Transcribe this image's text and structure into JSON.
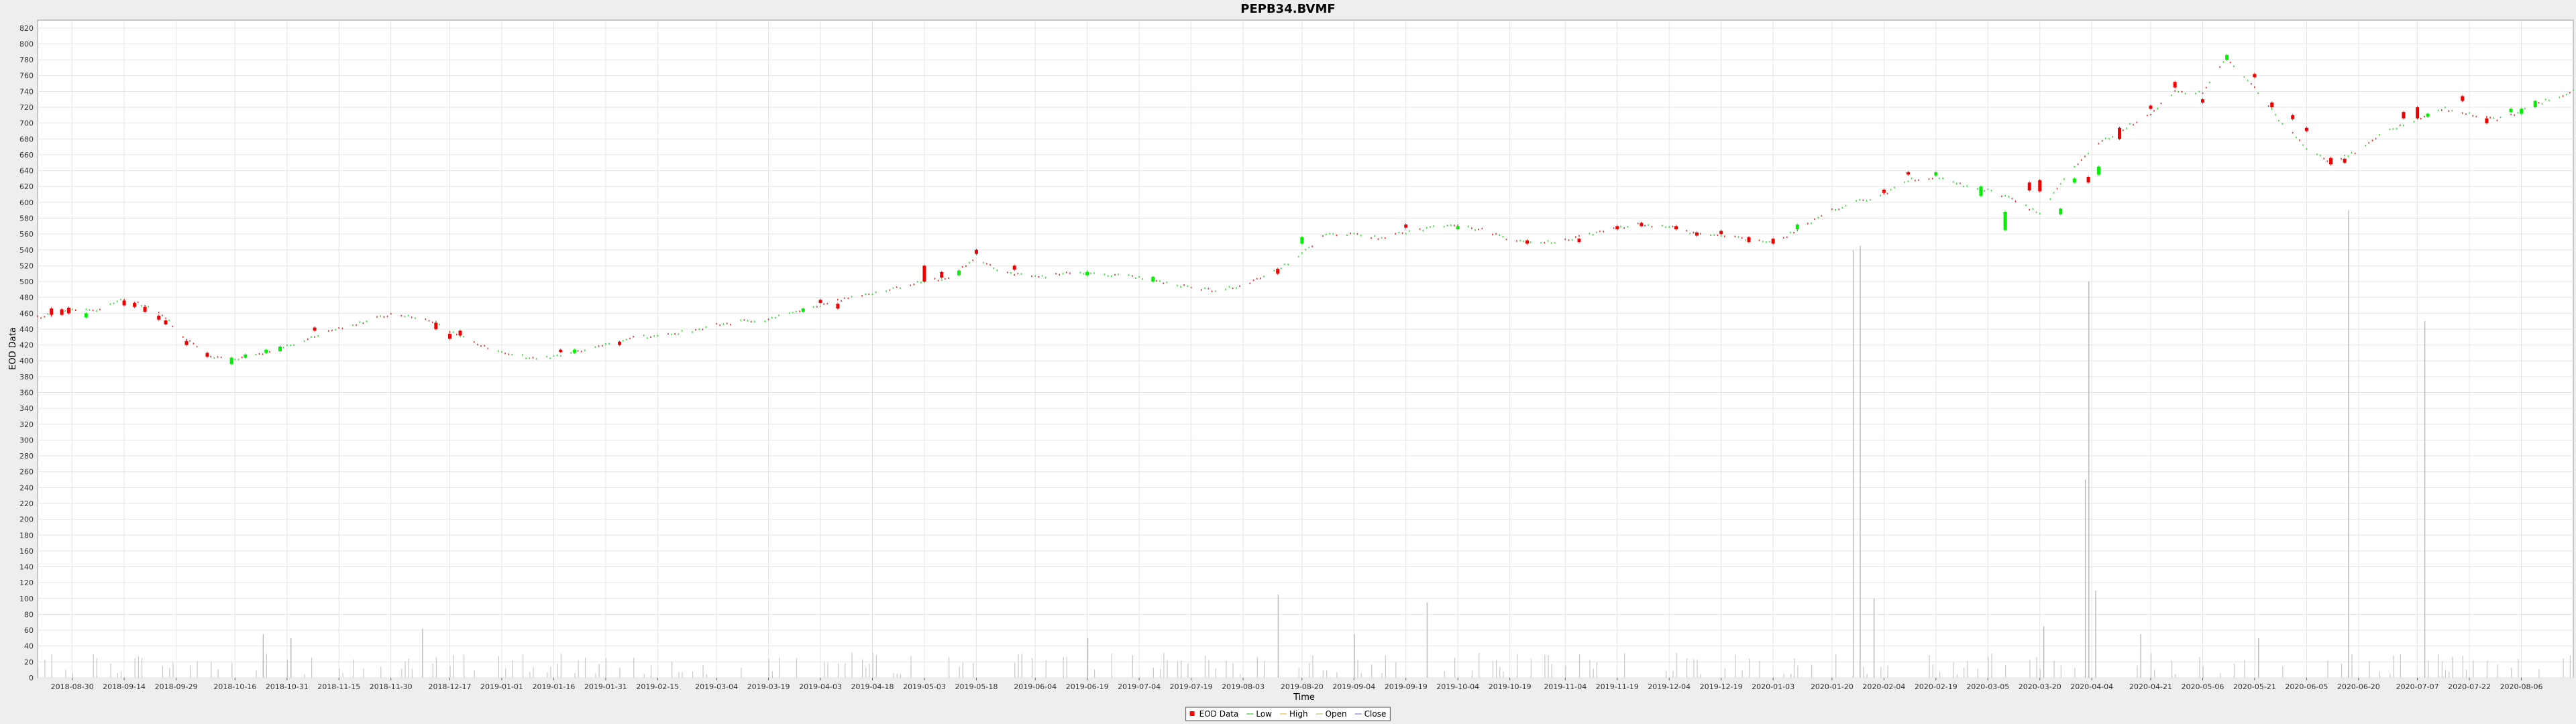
{
  "chart_data": {
    "type": "candlestick",
    "title": "PEPB34.BVMF",
    "xlabel": "Time",
    "ylabel": "EOD Data",
    "ylim": [
      0,
      830
    ],
    "y_ticks": [
      0,
      20,
      40,
      60,
      80,
      100,
      120,
      140,
      160,
      180,
      200,
      220,
      240,
      260,
      280,
      300,
      320,
      340,
      360,
      380,
      400,
      420,
      440,
      460,
      480,
      500,
      520,
      540,
      560,
      580,
      600,
      620,
      640,
      660,
      680,
      700,
      720,
      740,
      760,
      780,
      800,
      820
    ],
    "x_range": [
      "2018-08-20",
      "2020-08-21"
    ],
    "x_ticks": [
      "2018-08-30",
      "2018-09-14",
      "2018-09-29",
      "2018-10-16",
      "2018-10-31",
      "2018-11-15",
      "2018-11-30",
      "2018-12-17",
      "2019-01-01",
      "2019-01-16",
      "2019-01-31",
      "2019-02-15",
      "2019-03-04",
      "2019-03-19",
      "2019-04-03",
      "2019-04-18",
      "2019-05-03",
      "2019-05-18",
      "2019-06-04",
      "2019-06-19",
      "2019-07-04",
      "2019-07-19",
      "2019-08-03",
      "2019-08-20",
      "2019-09-04",
      "2019-09-19",
      "2019-10-04",
      "2019-10-19",
      "2019-11-04",
      "2019-11-19",
      "2019-12-04",
      "2019-12-19",
      "2020-01-03",
      "2020-01-20",
      "2020-02-04",
      "2020-02-19",
      "2020-03-05",
      "2020-03-20",
      "2020-04-04",
      "2020-04-21",
      "2020-05-06",
      "2020-05-21",
      "2020-06-05",
      "2020-06-20",
      "2020-07-07",
      "2020-07-22",
      "2020-08-06"
    ],
    "legend": {
      "placement": "bottom-center",
      "entries": [
        {
          "name": "EOD Data",
          "color": "#ff0000"
        },
        {
          "name": "Low",
          "color": "#66cc66"
        },
        {
          "name": "High",
          "color": "#e6cc66"
        },
        {
          "name": "Open",
          "color": "#cccc88"
        },
        {
          "name": "Close",
          "color": "#9999cc"
        }
      ]
    },
    "grid": true,
    "colors": {
      "up": "#00ee00",
      "down": "#ee0000",
      "volume": "#c8c8c8"
    },
    "price_path": [
      [
        "2018-08-20",
        455
      ],
      [
        "2018-08-27",
        460
      ],
      [
        "2018-08-31",
        465
      ],
      [
        "2018-09-05",
        462
      ],
      [
        "2018-09-11",
        472
      ],
      [
        "2018-09-14",
        478
      ],
      [
        "2018-09-21",
        468
      ],
      [
        "2018-09-26",
        455
      ],
      [
        "2018-09-29",
        440
      ],
      [
        "2018-10-04",
        420
      ],
      [
        "2018-10-09",
        405
      ],
      [
        "2018-10-15",
        400
      ],
      [
        "2018-10-23",
        408
      ],
      [
        "2018-10-31",
        418
      ],
      [
        "2018-11-08",
        430
      ],
      [
        "2018-11-15",
        440
      ],
      [
        "2018-11-23",
        450
      ],
      [
        "2018-11-30",
        458
      ],
      [
        "2018-12-06",
        455
      ],
      [
        "2018-12-13",
        448
      ],
      [
        "2018-12-17",
        438
      ],
      [
        "2018-12-26",
        420
      ],
      [
        "2019-01-03",
        410
      ],
      [
        "2019-01-10",
        402
      ],
      [
        "2019-01-16",
        405
      ],
      [
        "2019-01-24",
        412
      ],
      [
        "2019-01-31",
        420
      ],
      [
        "2019-02-07",
        428
      ],
      [
        "2019-02-15",
        432
      ],
      [
        "2019-02-25",
        438
      ],
      [
        "2019-03-04",
        445
      ],
      [
        "2019-03-12",
        450
      ],
      [
        "2019-03-19",
        452
      ],
      [
        "2019-03-26",
        462
      ],
      [
        "2019-04-03",
        470
      ],
      [
        "2019-04-10",
        478
      ],
      [
        "2019-04-18",
        485
      ],
      [
        "2019-04-25",
        492
      ],
      [
        "2019-05-03",
        500
      ],
      [
        "2019-05-10",
        505
      ],
      [
        "2019-05-18",
        530
      ],
      [
        "2019-05-25",
        512
      ],
      [
        "2019-06-04",
        505
      ],
      [
        "2019-06-12",
        510
      ],
      [
        "2019-06-19",
        512
      ],
      [
        "2019-06-27",
        508
      ],
      [
        "2019-07-04",
        505
      ],
      [
        "2019-07-12",
        498
      ],
      [
        "2019-07-19",
        492
      ],
      [
        "2019-07-26",
        488
      ],
      [
        "2019-08-03",
        495
      ],
      [
        "2019-08-12",
        512
      ],
      [
        "2019-08-20",
        535
      ],
      [
        "2019-08-27",
        560
      ],
      [
        "2019-09-04",
        560
      ],
      [
        "2019-09-12",
        555
      ],
      [
        "2019-09-19",
        562
      ],
      [
        "2019-09-26",
        568
      ],
      [
        "2019-10-04",
        570
      ],
      [
        "2019-10-12",
        565
      ],
      [
        "2019-10-19",
        552
      ],
      [
        "2019-10-26",
        548
      ],
      [
        "2019-11-04",
        552
      ],
      [
        "2019-11-12",
        560
      ],
      [
        "2019-11-19",
        568
      ],
      [
        "2019-11-26",
        572
      ],
      [
        "2019-12-04",
        570
      ],
      [
        "2019-12-12",
        560
      ],
      [
        "2019-12-19",
        558
      ],
      [
        "2019-12-27",
        552
      ],
      [
        "2020-01-03",
        548
      ],
      [
        "2020-01-10",
        565
      ],
      [
        "2020-01-20",
        590
      ],
      [
        "2020-01-27",
        600
      ],
      [
        "2020-02-04",
        610
      ],
      [
        "2020-02-11",
        628
      ],
      [
        "2020-02-19",
        632
      ],
      [
        "2020-02-26",
        622
      ],
      [
        "2020-03-05",
        615
      ],
      [
        "2020-03-12",
        605
      ],
      [
        "2020-03-20",
        585
      ],
      [
        "2020-03-27",
        630
      ],
      [
        "2020-04-04",
        668
      ],
      [
        "2020-04-12",
        690
      ],
      [
        "2020-04-21",
        712
      ],
      [
        "2020-04-28",
        740
      ],
      [
        "2020-05-06",
        738
      ],
      [
        "2020-05-13",
        782
      ],
      [
        "2020-05-21",
        745
      ],
      [
        "2020-05-28",
        705
      ],
      [
        "2020-06-05",
        668
      ],
      [
        "2020-06-12",
        650
      ],
      [
        "2020-06-20",
        665
      ],
      [
        "2020-06-28",
        690
      ],
      [
        "2020-07-07",
        705
      ],
      [
        "2020-07-15",
        718
      ],
      [
        "2020-07-22",
        712
      ],
      [
        "2020-07-30",
        705
      ],
      [
        "2020-08-06",
        715
      ],
      [
        "2020-08-13",
        728
      ],
      [
        "2020-08-21",
        740
      ]
    ],
    "candles": [
      [
        "2018-08-24",
        458,
        466,
        "down"
      ],
      [
        "2018-08-27",
        458,
        465,
        "down"
      ],
      [
        "2018-08-29",
        460,
        467,
        "down"
      ],
      [
        "2018-09-03",
        455,
        460,
        "up"
      ],
      [
        "2018-09-14",
        470,
        476,
        "down"
      ],
      [
        "2018-09-17",
        468,
        473,
        "down"
      ],
      [
        "2018-09-20",
        462,
        468,
        "down"
      ],
      [
        "2018-09-24",
        452,
        457,
        "down"
      ],
      [
        "2018-09-26",
        446,
        451,
        "down"
      ],
      [
        "2018-10-02",
        420,
        425,
        "down"
      ],
      [
        "2018-10-08",
        405,
        410,
        "down"
      ],
      [
        "2018-10-15",
        396,
        404,
        "up"
      ],
      [
        "2018-10-19",
        404,
        408,
        "up"
      ],
      [
        "2018-10-25",
        410,
        414,
        "up"
      ],
      [
        "2018-10-29",
        412,
        418,
        "up"
      ],
      [
        "2018-11-08",
        438,
        442,
        "down"
      ],
      [
        "2018-12-13",
        440,
        448,
        "down"
      ],
      [
        "2018-12-17",
        428,
        434,
        "down"
      ],
      [
        "2018-12-20",
        432,
        438,
        "down"
      ],
      [
        "2019-01-18",
        411,
        414,
        "down"
      ],
      [
        "2019-01-22",
        410,
        414,
        "up"
      ],
      [
        "2019-02-04",
        420,
        424,
        "down"
      ],
      [
        "2019-03-29",
        462,
        466,
        "up"
      ],
      [
        "2019-04-03",
        473,
        477,
        "down"
      ],
      [
        "2019-04-08",
        466,
        472,
        "down"
      ],
      [
        "2019-05-03",
        500,
        520,
        "down"
      ],
      [
        "2019-05-08",
        505,
        512,
        "down"
      ],
      [
        "2019-05-13",
        508,
        514,
        "up"
      ],
      [
        "2019-05-18",
        535,
        540,
        "down"
      ],
      [
        "2019-05-29",
        515,
        520,
        "down"
      ],
      [
        "2019-06-19",
        508,
        512,
        "up"
      ],
      [
        "2019-07-08",
        500,
        506,
        "up"
      ],
      [
        "2019-08-13",
        510,
        516,
        "down"
      ],
      [
        "2019-08-20",
        548,
        556,
        "up"
      ],
      [
        "2019-09-19",
        568,
        572,
        "down"
      ],
      [
        "2019-10-04",
        566,
        570,
        "up"
      ],
      [
        "2019-10-24",
        548,
        552,
        "down"
      ],
      [
        "2019-11-08",
        550,
        554,
        "down"
      ],
      [
        "2019-11-19",
        566,
        570,
        "down"
      ],
      [
        "2019-11-26",
        570,
        574,
        "down"
      ],
      [
        "2019-12-06",
        566,
        570,
        "down"
      ],
      [
        "2019-12-12",
        558,
        562,
        "down"
      ],
      [
        "2019-12-19",
        560,
        564,
        "down"
      ],
      [
        "2019-12-27",
        550,
        556,
        "down"
      ],
      [
        "2020-01-03",
        548,
        554,
        "down"
      ],
      [
        "2020-01-10",
        566,
        572,
        "up"
      ],
      [
        "2020-02-04",
        612,
        616,
        "down"
      ],
      [
        "2020-02-11",
        635,
        638,
        "down"
      ],
      [
        "2020-02-19",
        634,
        638,
        "up"
      ],
      [
        "2020-03-03",
        608,
        620,
        "up"
      ],
      [
        "2020-03-10",
        565,
        588,
        "up"
      ],
      [
        "2020-03-17",
        615,
        625,
        "down"
      ],
      [
        "2020-03-20",
        614,
        628,
        "down"
      ],
      [
        "2020-03-26",
        585,
        592,
        "up"
      ],
      [
        "2020-03-30",
        625,
        630,
        "up"
      ],
      [
        "2020-04-03",
        625,
        632,
        "down"
      ],
      [
        "2020-04-06",
        635,
        645,
        "up"
      ],
      [
        "2020-04-12",
        680,
        694,
        "down"
      ],
      [
        "2020-04-21",
        718,
        722,
        "down"
      ],
      [
        "2020-04-28",
        745,
        752,
        "down"
      ],
      [
        "2020-05-06",
        726,
        730,
        "down"
      ],
      [
        "2020-05-13",
        780,
        786,
        "up"
      ],
      [
        "2020-05-21",
        758,
        762,
        "down"
      ],
      [
        "2020-05-26",
        720,
        726,
        "down"
      ],
      [
        "2020-06-01",
        705,
        710,
        "down"
      ],
      [
        "2020-06-05",
        690,
        694,
        "down"
      ],
      [
        "2020-06-12",
        648,
        656,
        "down"
      ],
      [
        "2020-06-16",
        650,
        655,
        "down"
      ],
      [
        "2020-07-03",
        706,
        714,
        "down"
      ],
      [
        "2020-07-07",
        706,
        720,
        "down"
      ],
      [
        "2020-07-10",
        708,
        712,
        "up"
      ],
      [
        "2020-07-20",
        728,
        734,
        "down"
      ],
      [
        "2020-07-27",
        700,
        706,
        "down"
      ],
      [
        "2020-08-03",
        714,
        718,
        "up"
      ],
      [
        "2020-08-06",
        712,
        718,
        "up"
      ],
      [
        "2020-08-10",
        720,
        728,
        "up"
      ]
    ],
    "volume_spikes": [
      [
        "2018-10-24",
        55
      ],
      [
        "2018-11-01",
        50
      ],
      [
        "2018-12-09",
        62
      ],
      [
        "2019-06-19",
        50
      ],
      [
        "2019-08-13",
        105
      ],
      [
        "2019-09-04",
        55
      ],
      [
        "2019-09-25",
        95
      ],
      [
        "2020-01-26",
        540
      ],
      [
        "2020-01-28",
        545
      ],
      [
        "2020-02-01",
        100
      ],
      [
        "2020-03-21",
        65
      ],
      [
        "2020-04-02",
        250
      ],
      [
        "2020-04-03",
        500
      ],
      [
        "2020-04-05",
        110
      ],
      [
        "2020-04-18",
        55
      ],
      [
        "2020-05-22",
        50
      ],
      [
        "2020-06-17",
        590
      ],
      [
        "2020-07-09",
        450
      ]
    ]
  }
}
